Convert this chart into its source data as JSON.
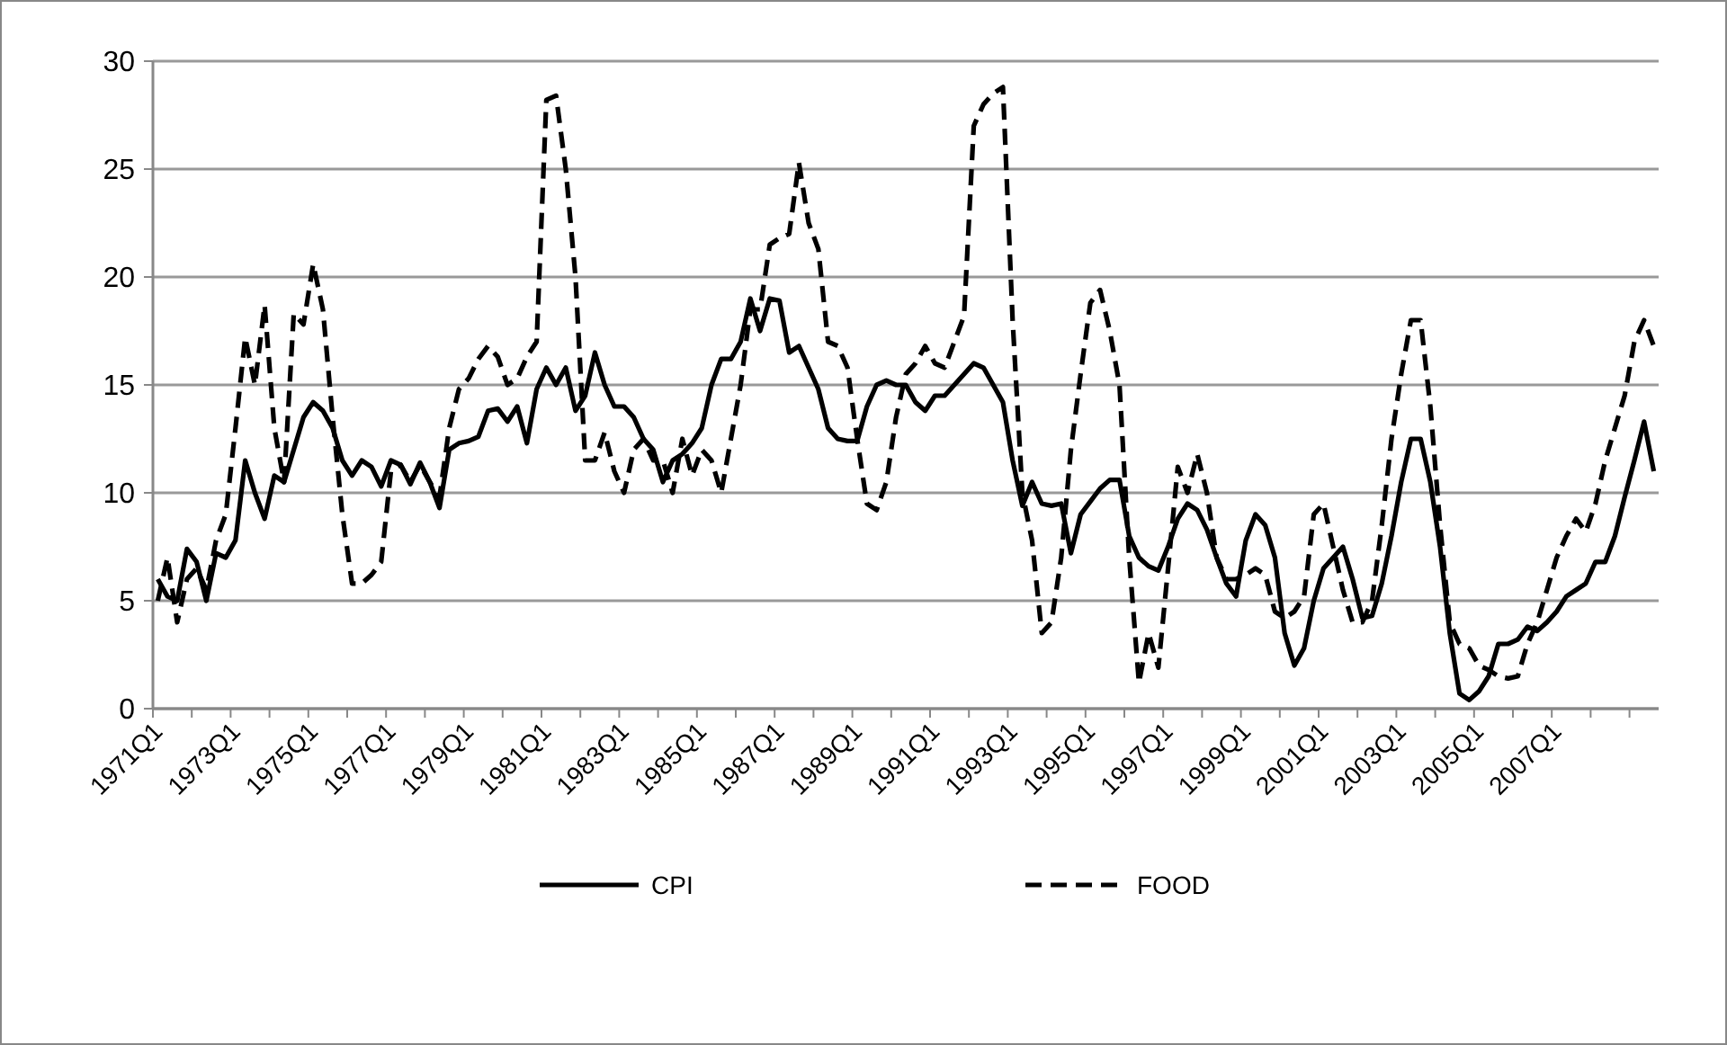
{
  "chart_data": {
    "type": "line",
    "categories": [
      "1971Q1",
      null,
      null,
      null,
      null,
      null,
      null,
      null,
      "1973Q1",
      null,
      null,
      null,
      null,
      null,
      null,
      null,
      "1975Q1",
      null,
      null,
      null,
      null,
      null,
      null,
      null,
      "1977Q1",
      null,
      null,
      null,
      null,
      null,
      null,
      null,
      "1979Q1",
      null,
      null,
      null,
      null,
      null,
      null,
      null,
      "1981Q1",
      null,
      null,
      null,
      null,
      null,
      null,
      null,
      "1983Q1",
      null,
      null,
      null,
      null,
      null,
      null,
      null,
      "1985Q1",
      null,
      null,
      null,
      null,
      null,
      null,
      null,
      "1987Q1",
      null,
      null,
      null,
      null,
      null,
      null,
      null,
      "1989Q1",
      null,
      null,
      null,
      null,
      null,
      null,
      null,
      "1991Q1",
      null,
      null,
      null,
      null,
      null,
      null,
      null,
      "1993Q1",
      null,
      null,
      null,
      null,
      null,
      null,
      null,
      "1995Q1",
      null,
      null,
      null,
      null,
      null,
      null,
      null,
      "1997Q1",
      null,
      null,
      null,
      null,
      null,
      null,
      null,
      "1999Q1",
      null,
      null,
      null,
      null,
      null,
      null,
      null,
      "2001Q1",
      null,
      null,
      null,
      null,
      null,
      null,
      null,
      "2003Q1",
      null,
      null,
      null,
      null,
      null,
      null,
      null,
      "2005Q1",
      null,
      null,
      null,
      null,
      null,
      null,
      null,
      "2007Q1",
      null,
      null,
      null,
      null,
      null,
      null,
      null,
      null,
      null,
      null
    ],
    "series": [
      {
        "name": "CPI",
        "color": "#000000",
        "line_style": "solid",
        "values": [
          6.0,
          5.2,
          5.0,
          7.4,
          6.8,
          5.0,
          7.2,
          7.0,
          7.8,
          11.5,
          10.0,
          8.8,
          10.8,
          10.5,
          12.0,
          13.5,
          14.2,
          13.8,
          13.0,
          11.5,
          10.8,
          11.5,
          11.2,
          10.3,
          11.5,
          11.3,
          10.4,
          11.4,
          10.5,
          9.3,
          12.0,
          12.3,
          12.4,
          12.6,
          13.8,
          13.9,
          13.3,
          14.0,
          12.3,
          14.8,
          15.8,
          15.0,
          15.8,
          13.8,
          14.5,
          16.5,
          15.0,
          14.0,
          14.0,
          13.5,
          12.5,
          12.0,
          10.5,
          11.5,
          11.8,
          12.3,
          13.0,
          15.0,
          16.2,
          16.2,
          17.0,
          19.0,
          17.5,
          19.0,
          18.9,
          16.5,
          16.8,
          15.8,
          14.8,
          13.0,
          12.5,
          12.4,
          12.4,
          14.0,
          15.0,
          15.2,
          15.0,
          15.0,
          14.2,
          13.8,
          14.5,
          14.5,
          15.0,
          15.5,
          16.0,
          15.8,
          15.0,
          14.2,
          11.5,
          9.4,
          10.5,
          9.5,
          9.4,
          9.5,
          7.2,
          9.0,
          9.6,
          10.2,
          10.6,
          10.6,
          8.0,
          7.0,
          6.6,
          6.4,
          7.5,
          8.8,
          9.5,
          9.2,
          8.3,
          7.0,
          5.8,
          5.2,
          7.8,
          9.0,
          8.5,
          7.0,
          3.5,
          2.0,
          2.8,
          5.0,
          6.5,
          7.0,
          7.5,
          6.0,
          4.2,
          4.3,
          5.8,
          8.0,
          10.5,
          12.5,
          12.5,
          10.5,
          7.5,
          3.5,
          0.7,
          0.4,
          0.8,
          1.5,
          3.0,
          3.0,
          3.2,
          3.8,
          3.6,
          4.0,
          4.5,
          5.2,
          5.5,
          5.8,
          6.8,
          6.8,
          8.0,
          9.8,
          11.5,
          13.3,
          11.0
        ]
      },
      {
        "name": "FOOD",
        "color": "#000000",
        "line_style": "dashed",
        "values": [
          5.0,
          7.0,
          4.0,
          6.0,
          6.5,
          5.5,
          7.8,
          9.0,
          13.0,
          17.2,
          15.0,
          18.7,
          13.0,
          10.5,
          18.3,
          17.8,
          20.6,
          18.5,
          13.5,
          9.0,
          5.8,
          5.8,
          6.2,
          6.8,
          11.0,
          11.3,
          10.5,
          11.3,
          10.5,
          9.8,
          13.0,
          14.8,
          15.3,
          16.2,
          16.8,
          16.3,
          15.0,
          15.3,
          16.3,
          17.0,
          28.2,
          28.4,
          25.0,
          20.0,
          11.5,
          11.5,
          12.8,
          11.0,
          10.0,
          12.0,
          12.5,
          11.5,
          11.5,
          10.0,
          12.5,
          10.8,
          12.0,
          11.5,
          10.0,
          12.5,
          15.0,
          18.5,
          18.5,
          21.5,
          21.8,
          22.0,
          25.3,
          22.5,
          21.3,
          17.0,
          16.8,
          15.8,
          12.5,
          9.5,
          9.2,
          10.5,
          13.5,
          15.5,
          16.0,
          16.8,
          16.0,
          15.8,
          17.0,
          18.2,
          27.0,
          28.0,
          28.5,
          28.8,
          18.0,
          10.0,
          7.8,
          3.5,
          4.0,
          7.0,
          12.0,
          15.5,
          18.8,
          19.4,
          17.5,
          15.0,
          7.0,
          1.2,
          3.5,
          1.9,
          6.5,
          11.2,
          10.0,
          11.8,
          10.0,
          7.0,
          6.0,
          6.0,
          6.2,
          6.5,
          6.2,
          4.5,
          4.2,
          4.5,
          5.2,
          9.0,
          9.5,
          7.5,
          5.5,
          4.0,
          4.0,
          5.0,
          8.5,
          12.5,
          15.5,
          18.0,
          18.0,
          14.0,
          8.5,
          4.0,
          3.0,
          2.8,
          2.0,
          1.8,
          1.5,
          1.4,
          1.5,
          3.0,
          4.0,
          5.5,
          7.0,
          8.0,
          8.8,
          8.2,
          9.5,
          11.5,
          13.0,
          14.5,
          17.0,
          18.0,
          16.8
        ]
      }
    ],
    "ylim": [
      0,
      30
    ],
    "yticks": [
      0,
      5,
      10,
      15,
      20,
      25,
      30
    ],
    "grid": "y",
    "legend": "bottom"
  }
}
